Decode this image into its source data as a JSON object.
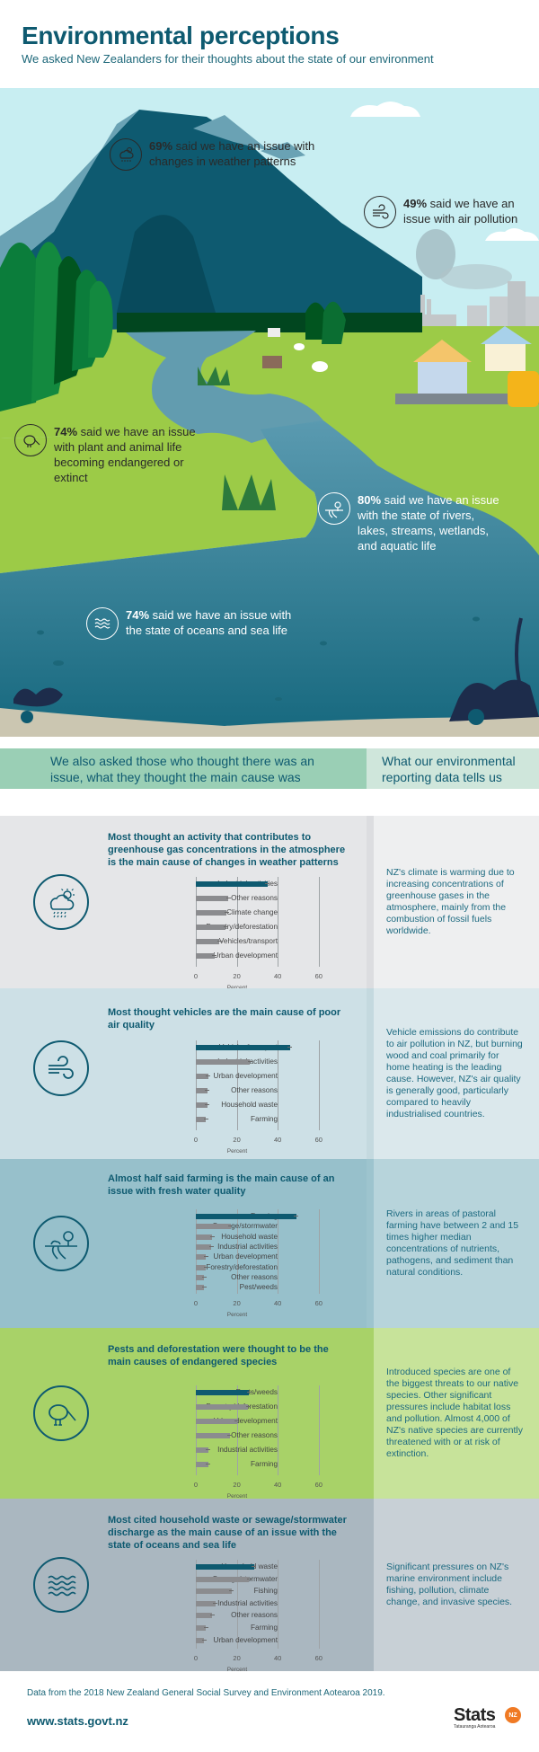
{
  "header": {
    "title": "Environmental perceptions",
    "subtitle": "We asked New Zealanders for their thoughts about the state of our environment"
  },
  "hero_stats": [
    {
      "pct": "69%",
      "text": " said we have an issue with changes in weather patterns",
      "icon": "weather-icon"
    },
    {
      "pct": "49%",
      "text": " said we have an issue with air pollution",
      "icon": "wind-icon"
    },
    {
      "pct": "74%",
      "text": " said we have an issue with plant and animal life becoming endangered or extinct",
      "icon": "kiwi-icon"
    },
    {
      "pct": "80%",
      "text": " said we have an issue with the state of rivers, lakes, streams, wetlands, and aquatic life",
      "icon": "river-icon"
    },
    {
      "pct": "74%",
      "text": " said we have an issue with the state of oceans and sea life",
      "icon": "waves-icon"
    }
  ],
  "columns": {
    "left": "We also asked those who thought there was an issue, what they thought the main cause was",
    "right": "What our environmental reporting data tells us"
  },
  "axis": {
    "ticks": [
      "0",
      "20",
      "40",
      "60"
    ],
    "label": "Percent"
  },
  "sections": [
    {
      "title": "Most thought an activity that contributes to greenhouse gas concentrations in the atmosphere is the main cause of changes in weather patterns",
      "note": "NZ's climate is warming due to increasing concentrations of greenhouse gases in the atmosphere, mainly from the combustion of fossil fuels worldwide.",
      "icon": "weather-icon",
      "colors": {
        "main": "#e5e6e8",
        "side": "#eeeff0",
        "strip": "#dcdde0"
      }
    },
    {
      "title": "Most thought vehicles are the main cause of poor air quality",
      "note": "Vehicle emissions do contribute to air pollution in NZ, but burning wood and coal primarily for home heating is the leading cause. However, NZ's air quality is generally good, particularly compared to heavily industrialised countries.",
      "icon": "wind-icon",
      "colors": {
        "main": "#cde0e6",
        "side": "#dbe8ec",
        "strip": "#c4d9df"
      }
    },
    {
      "title": "Almost half said farming is the main cause of an issue with fresh water quality",
      "note": "Rivers in areas of pastoral farming have between 2 and 15 times higher median concentrations of nutrients, pathogens, and sediment than natural conditions.",
      "icon": "river-icon",
      "colors": {
        "main": "#97c0cb",
        "side": "#b7d4db",
        "strip": "#9dc4ce"
      }
    },
    {
      "title": "Pests and deforestation were thought to be the main causes of endangered species",
      "note": "Introduced species are one of the biggest threats to our native species. Other significant pressures include habitat loss and pollution. Almost 4,000 of NZ's native species are currently threatened with or at risk of extinction.",
      "icon": "kiwi-icon",
      "colors": {
        "main": "#a8d268",
        "side": "#c7e39a",
        "strip": "#a8d268"
      }
    },
    {
      "title": "Most cited household waste or sewage/stormwater discharge as the main cause of an issue with the state of oceans and sea life",
      "note": "Significant pressures on NZ's marine environment include fishing, pollution, climate change, and invasive species.",
      "icon": "waves-icon",
      "colors": {
        "main": "#aab7c0",
        "side": "#c8d0d6",
        "strip": "#aab7c0"
      }
    }
  ],
  "chart_data": [
    {
      "type": "bar",
      "title": "Most thought an activity that contributes to greenhouse gas concentrations in the atmosphere is the main cause of changes in weather patterns",
      "categories": [
        "Industrial activities",
        "Other reasons",
        "Climate change",
        "Forestry/deforestation",
        "Vehicles/transport",
        "Urban development"
      ],
      "values": [
        35,
        16,
        15,
        14.5,
        11.5,
        9
      ],
      "xlabel": "Percent",
      "xlim": [
        0,
        60
      ],
      "orientation": "horizontal",
      "grid": true,
      "error_bars": true
    },
    {
      "type": "bar",
      "title": "Most thought vehicles are the main cause of poor air quality",
      "categories": [
        "Vehicles/transport",
        "Industrial activities",
        "Urban development",
        "Other reasons",
        "Household waste",
        "Farming"
      ],
      "values": [
        46,
        26.5,
        6,
        5.5,
        5.5,
        5
      ],
      "xlabel": "Percent",
      "xlim": [
        0,
        60
      ],
      "orientation": "horizontal",
      "grid": true,
      "error_bars": true
    },
    {
      "type": "bar",
      "title": "Almost half said farming is the main cause of an issue with fresh water quality",
      "categories": [
        "Farming",
        "Sewage/stormwater",
        "Household waste",
        "Industrial activities",
        "Urban development",
        "Forestry/deforestation",
        "Other reasons",
        "Pest/weeds"
      ],
      "values": [
        49,
        17,
        8,
        7.5,
        5,
        5,
        4,
        4
      ],
      "xlabel": "Percent",
      "xlim": [
        0,
        60
      ],
      "orientation": "horizontal",
      "grid": true,
      "error_bars": true
    },
    {
      "type": "bar",
      "title": "Pests and deforestation were thought to be the main causes of endangered species",
      "categories": [
        "Pests/weeds",
        "Forestry/deforestation",
        "Urban development",
        "Other reasons",
        "Industrial activities",
        "Farming"
      ],
      "values": [
        26,
        25.5,
        20,
        16.5,
        6,
        6
      ],
      "xlabel": "Percent",
      "xlim": [
        0,
        60
      ],
      "orientation": "horizontal",
      "grid": true,
      "error_bars": true
    },
    {
      "type": "bar",
      "title": "Most cited household waste or sewage/stormwater discharge as the main cause of an issue with the state of oceans and sea life",
      "categories": [
        "Household waste",
        "Sewage/stormwater",
        "Fishing",
        "Industrial activities",
        "Other reasons",
        "Farming",
        "Urban development"
      ],
      "values": [
        28.5,
        26,
        17.5,
        9.5,
        8,
        5,
        4
      ],
      "xlabel": "Percent",
      "xlim": [
        0,
        60
      ],
      "orientation": "horizontal",
      "grid": true,
      "error_bars": true
    }
  ],
  "footer": {
    "note": "Data from the 2018 New Zealand General Social Survey and Environment Aotearoa 2019.",
    "url": "www.stats.govt.nz",
    "logo_text": "Stats",
    "logo_badge": "NZ",
    "logo_sub": "Tatauranga Aotearoa"
  },
  "colors": {
    "primary": "#0e5a70",
    "highlight_bar": "#0e5a70",
    "other_bar": "#8b8c8f",
    "sky": "#c8eef2",
    "grass": "#9ccb47",
    "water": "#4a8fa3",
    "logo_orange": "#f07a24"
  }
}
